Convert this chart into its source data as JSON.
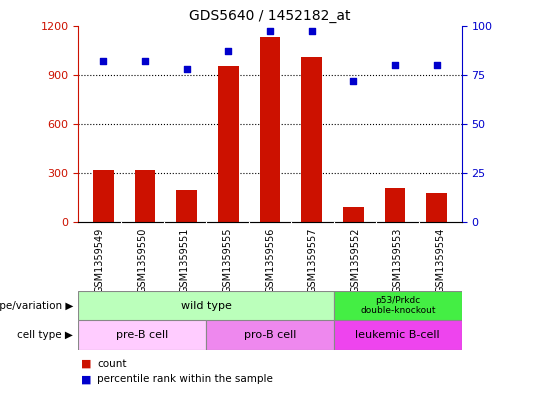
{
  "title": "GDS5640 / 1452182_at",
  "samples": [
    "GSM1359549",
    "GSM1359550",
    "GSM1359551",
    "GSM1359555",
    "GSM1359556",
    "GSM1359557",
    "GSM1359552",
    "GSM1359553",
    "GSM1359554"
  ],
  "counts": [
    320,
    320,
    195,
    950,
    1130,
    1010,
    90,
    210,
    175
  ],
  "percentiles": [
    82,
    82,
    78,
    87,
    97,
    97,
    72,
    80,
    80
  ],
  "ylim_left": [
    0,
    1200
  ],
  "ylim_right": [
    0,
    100
  ],
  "yticks_left": [
    0,
    300,
    600,
    900,
    1200
  ],
  "yticks_right": [
    0,
    25,
    50,
    75,
    100
  ],
  "bar_color": "#cc1100",
  "dot_color": "#0000cc",
  "grid_color": "#000000",
  "wt_color": "#bbffbb",
  "dko_color": "#44ee44",
  "pre_b_color": "#ffccff",
  "pro_b_color": "#ee88ee",
  "leuk_color": "#ee44ee",
  "xtick_bg": "#cccccc",
  "legend_count_label": "count",
  "legend_percentile_label": "percentile rank within the sample",
  "genotype_label": "genotype/variation",
  "cell_type_label": "cell type",
  "left_axis_color": "#cc1100",
  "right_axis_color": "#0000cc"
}
